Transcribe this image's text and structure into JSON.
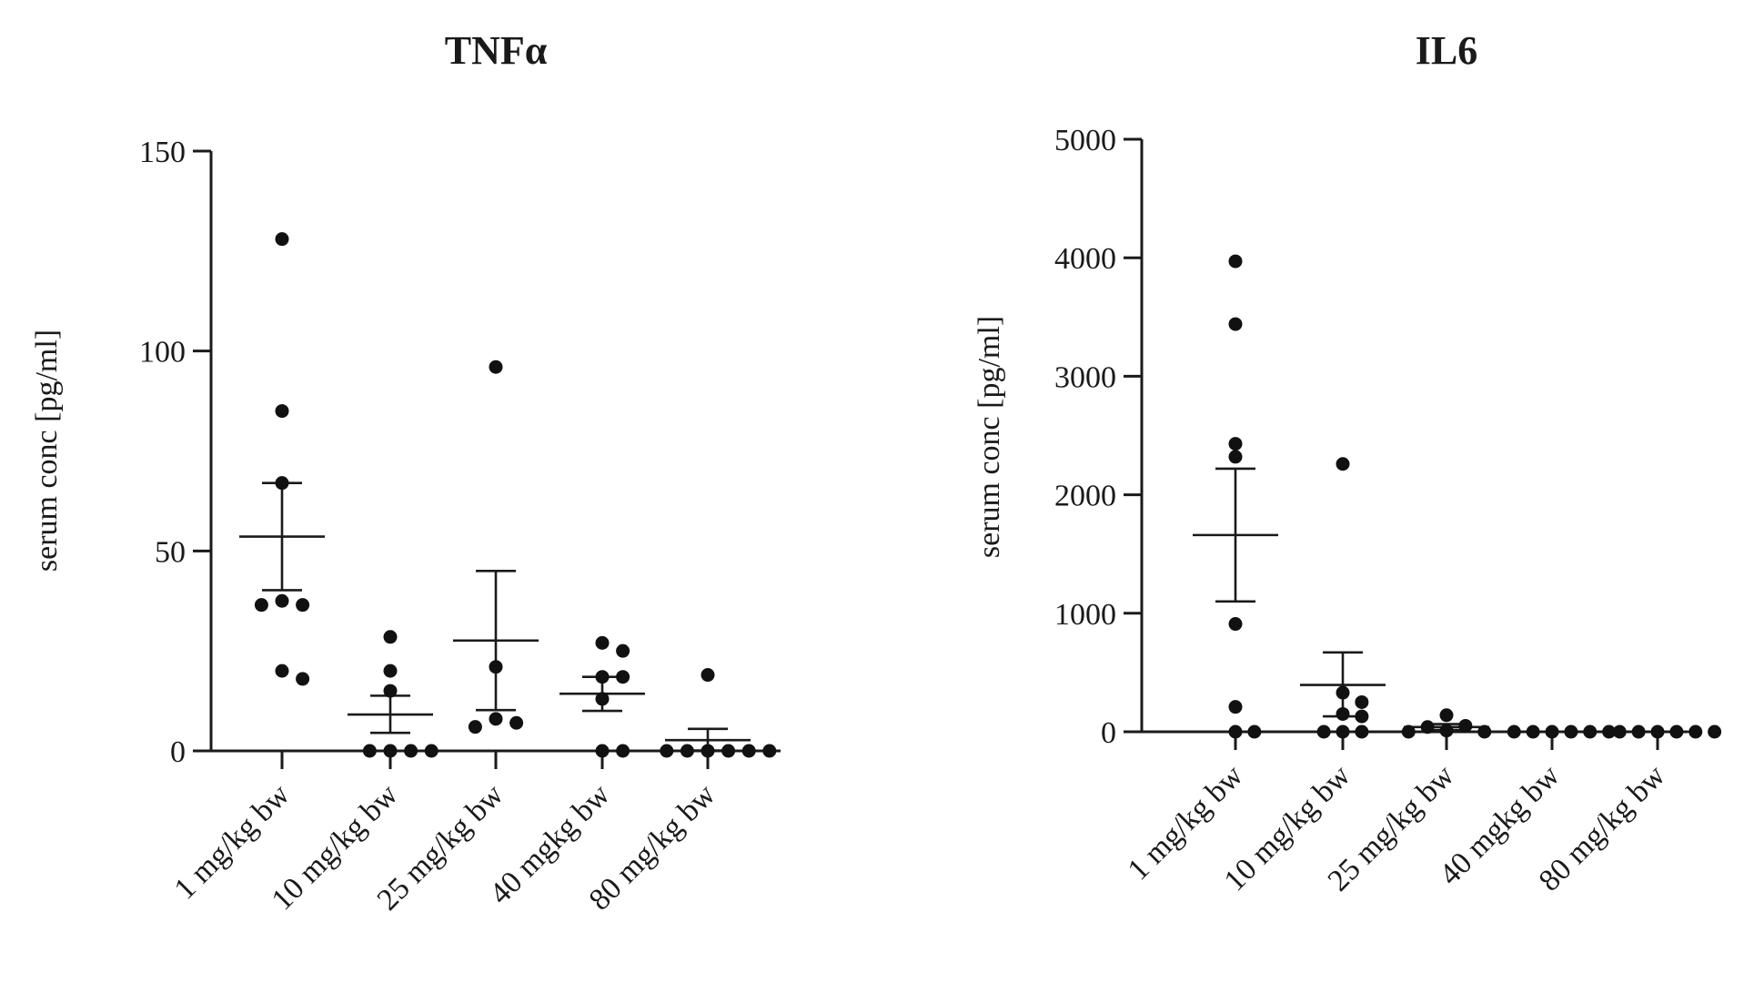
{
  "chart_data": [
    {
      "type": "scatter",
      "title": "TNFα",
      "ylabel": "serum conc [pg/ml]",
      "xlabel": "",
      "ylim": [
        0,
        150
      ],
      "yticks": [
        "0",
        "50",
        "100",
        "150"
      ],
      "categories": [
        "1 mg/kg bw",
        "10 mg/kg bw",
        "25 mg/kg bw",
        "40 mgkg bw",
        "80 mg/kg bw"
      ],
      "groups": [
        {
          "category": "1 mg/kg bw",
          "points": [
            128,
            85,
            67,
            37.5,
            36.5,
            36.5,
            20,
            18
          ],
          "mean": 53.6,
          "sem_low": 40.2,
          "sem_high": 67
        },
        {
          "category": "10 mg/kg bw",
          "points": [
            28.5,
            20,
            15,
            0,
            0,
            0,
            0
          ],
          "mean": 9.1,
          "sem_low": 4.5,
          "sem_high": 13.8
        },
        {
          "category": "25 mg/kg bw",
          "points": [
            96,
            21,
            8,
            7,
            6
          ],
          "mean": 27.6,
          "sem_low": 10.2,
          "sem_high": 45
        },
        {
          "category": "40 mgkg bw",
          "points": [
            27,
            25,
            18.5,
            18.5,
            13,
            0,
            0
          ],
          "mean": 14.3,
          "sem_low": 10,
          "sem_high": 18.5
        },
        {
          "category": "80 mg/kg bw",
          "points": [
            19,
            0,
            0,
            0,
            0,
            0,
            0
          ],
          "mean": 2.7,
          "sem_low": 0.1,
          "sem_high": 5.5
        }
      ]
    },
    {
      "type": "scatter",
      "title": "IL6",
      "ylabel": "serum conc [pg/ml]",
      "xlabel": "",
      "ylim": [
        0,
        5000
      ],
      "yticks": [
        "0",
        "1000",
        "2000",
        "3000",
        "4000",
        "5000"
      ],
      "categories": [
        "1 mg/kg bw",
        "10 mg/kg bw",
        "25 mg/kg bw",
        "40 mgkg bw",
        "80 mg/kg bw"
      ],
      "groups": [
        {
          "category": "1 mg/kg bw",
          "points": [
            3970,
            3440,
            2430,
            2320,
            910,
            210,
            0,
            0
          ],
          "mean": 1660,
          "sem_low": 1100,
          "sem_high": 2220
        },
        {
          "category": "10 mg/kg bw",
          "points": [
            2260,
            330,
            250,
            150,
            130,
            0,
            0,
            0
          ],
          "mean": 395,
          "sem_low": 130,
          "sem_high": 670
        },
        {
          "category": "25 mg/kg bw",
          "points": [
            140,
            50,
            40,
            10,
            0,
            0
          ],
          "mean": 40,
          "sem_low": 15,
          "sem_high": 65
        },
        {
          "category": "40 mgkg bw",
          "points": [
            0,
            0,
            0,
            0,
            0,
            0
          ],
          "mean": 0,
          "sem_low": 0,
          "sem_high": 0
        },
        {
          "category": "80 mg/kg bw",
          "points": [
            0,
            0,
            0,
            0,
            0,
            0
          ],
          "mean": 0,
          "sem_low": 0,
          "sem_high": 0
        }
      ]
    }
  ]
}
